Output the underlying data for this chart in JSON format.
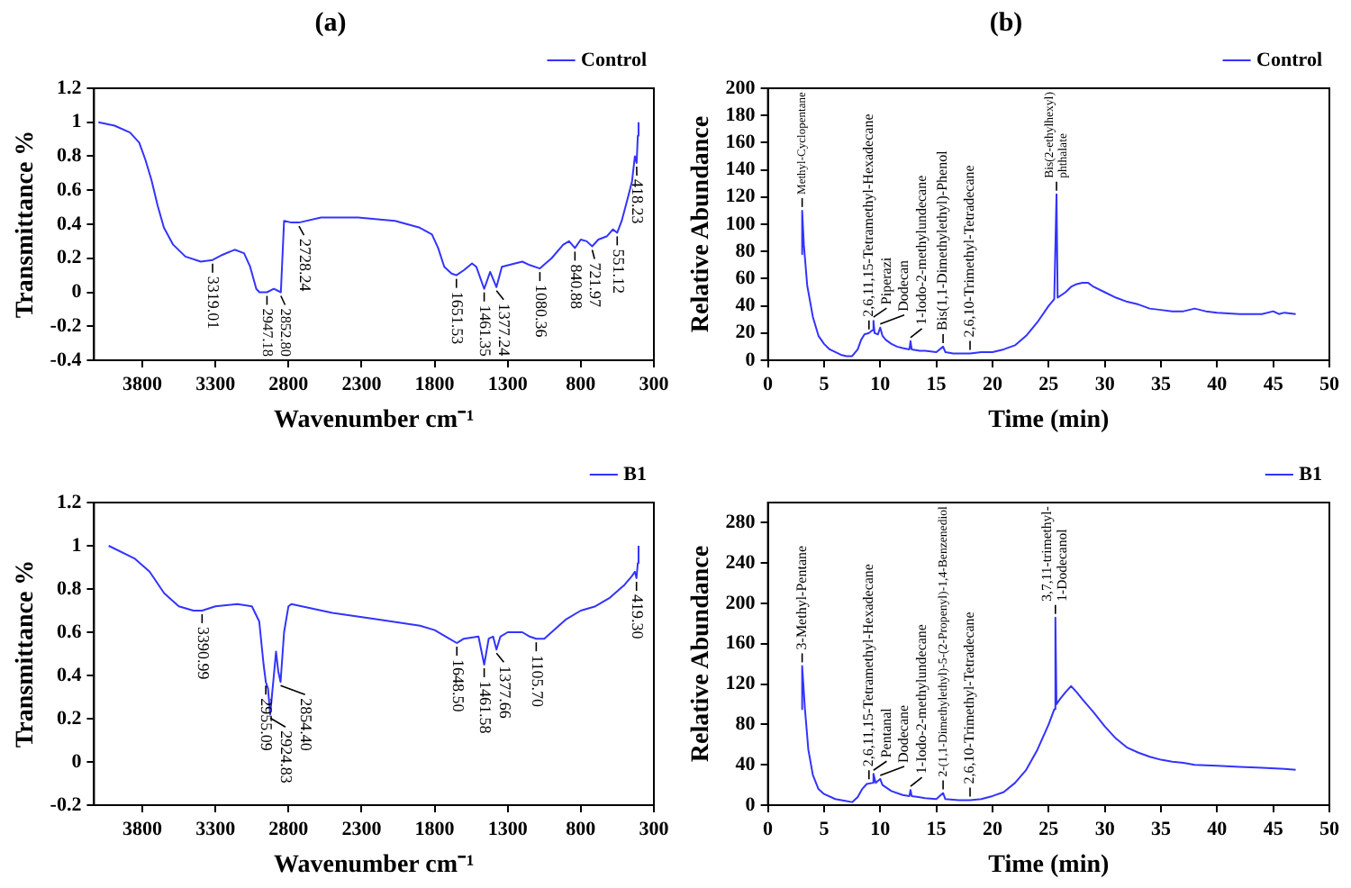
{
  "chart_data": [
    {
      "type": "line",
      "title": "(a)",
      "xlabel": "Wavenumber cm⁻¹",
      "ylabel": "Transmittance %",
      "xlim": [
        4130,
        300
      ],
      "xticks": [
        3800,
        3300,
        2800,
        2300,
        1800,
        1300,
        800,
        300
      ],
      "ylim": [
        -0.4,
        1.2
      ],
      "yticks": [
        -0.4,
        -0.2,
        0,
        0.2,
        0.4,
        0.6,
        0.8,
        1,
        1.2
      ],
      "grid": false,
      "legend": "top right",
      "marker": "none",
      "line_style": "solid",
      "x": [
        4100,
        3990,
        3884,
        3821,
        3779,
        3737,
        3695,
        3652,
        3589,
        3505,
        3400,
        3319,
        3252,
        3168,
        3104,
        3062,
        3020,
        2999,
        2947,
        2900,
        2852,
        2830,
        2780,
        2728,
        2577,
        2324,
        2071,
        1902,
        1818,
        1776,
        1734,
        1684,
        1651,
        1600,
        1544,
        1515,
        1461,
        1420,
        1377,
        1340,
        1250,
        1200,
        1150,
        1080,
        1000,
        920,
        880,
        840,
        800,
        760,
        722,
        680,
        620,
        580,
        551,
        520,
        480,
        450,
        430,
        418,
        410,
        405
      ],
      "series": [
        {
          "name": "Control",
          "color": "#3333ff",
          "values": [
            1.0,
            0.98,
            0.94,
            0.88,
            0.78,
            0.66,
            0.51,
            0.38,
            0.28,
            0.21,
            0.18,
            0.19,
            0.22,
            0.25,
            0.23,
            0.15,
            0.02,
            0.0,
            0.0,
            0.02,
            0.0,
            0.42,
            0.41,
            0.41,
            0.44,
            0.44,
            0.42,
            0.38,
            0.34,
            0.26,
            0.15,
            0.11,
            0.1,
            0.13,
            0.17,
            0.15,
            0.02,
            0.12,
            0.03,
            0.15,
            0.17,
            0.18,
            0.16,
            0.14,
            0.2,
            0.28,
            0.3,
            0.26,
            0.31,
            0.3,
            0.27,
            0.31,
            0.33,
            0.37,
            0.35,
            0.42,
            0.55,
            0.65,
            0.8,
            0.76,
            0.92,
            1.0
          ]
        }
      ],
      "annotations": [
        {
          "text": "3319.01",
          "x": 3319,
          "y": 0.19
        },
        {
          "text": "2947.18",
          "x": 2947,
          "y": 0.0
        },
        {
          "text": "2852.80",
          "x": 2852,
          "y": 0.0
        },
        {
          "text": "2728.24",
          "x": 2728,
          "y": 0.41
        },
        {
          "text": "1651.53",
          "x": 1651,
          "y": 0.1
        },
        {
          "text": "1461.35",
          "x": 1461,
          "y": 0.02
        },
        {
          "text": "1377.24",
          "x": 1377,
          "y": 0.03
        },
        {
          "text": "1080.36",
          "x": 1080,
          "y": 0.14
        },
        {
          "text": "840.88",
          "x": 840,
          "y": 0.26
        },
        {
          "text": "721.97",
          "x": 722,
          "y": 0.27
        },
        {
          "text": "551.12",
          "x": 551,
          "y": 0.35
        },
        {
          "text": "418.23",
          "x": 418,
          "y": 0.76
        }
      ]
    },
    {
      "type": "line",
      "title": "(b)",
      "xlabel": "Time (min)",
      "ylabel": "Relative Abundance",
      "xlim": [
        0,
        50
      ],
      "xticks": [
        0,
        5,
        10,
        15,
        20,
        25,
        30,
        35,
        40,
        45,
        50
      ],
      "ylim": [
        0,
        200
      ],
      "yticks": [
        0,
        20,
        40,
        60,
        80,
        100,
        120,
        140,
        160,
        180,
        200
      ],
      "grid": false,
      "legend": "top right",
      "marker": "none",
      "line_style": "solid",
      "x": [
        3.0,
        3.05,
        3.2,
        3.5,
        4.0,
        4.5,
        5.0,
        5.5,
        6.0,
        6.5,
        7.0,
        7.5,
        8.0,
        8.3,
        8.6,
        9.0,
        9.3,
        9.4,
        9.5,
        9.8,
        10.0,
        10.2,
        10.5,
        11,
        11.5,
        12,
        12.6,
        12.7,
        12.8,
        13.5,
        14,
        15,
        15.6,
        15.8,
        16.5,
        17,
        18,
        19,
        20,
        21,
        22,
        23,
        24,
        25,
        25.5,
        25.7,
        25.8,
        26.5,
        27,
        27.5,
        28,
        28.5,
        29,
        30,
        31,
        32,
        33,
        34,
        35,
        36,
        37,
        38,
        39,
        40,
        42,
        44,
        45,
        45.5,
        46,
        47
      ],
      "series": [
        {
          "name": "Control",
          "color": "#3333ff",
          "values": [
            78,
            110,
            85,
            55,
            32,
            18,
            12,
            8,
            6,
            4,
            3,
            3,
            8,
            15,
            19,
            20,
            22,
            29,
            20,
            19,
            24,
            18,
            15,
            12,
            10,
            9,
            8,
            14,
            8,
            7,
            7,
            6,
            10,
            6,
            5,
            5,
            5,
            6,
            6,
            8,
            11,
            18,
            28,
            40,
            45,
            122,
            46,
            50,
            54,
            56,
            57,
            57,
            54,
            50,
            46,
            43,
            41,
            38,
            37,
            36,
            36,
            38,
            36,
            35,
            34,
            34,
            36,
            34,
            35,
            34
          ]
        }
      ],
      "annotations": [
        {
          "text": "Methyl-Cyclopentane",
          "x": 3.05,
          "y": 110
        },
        {
          "text": "2,6,11,15-Tetramethyl-Hexadecane",
          "x": 9.0,
          "y": 20
        },
        {
          "text": "Piperazi",
          "x": 9.4,
          "y": 29
        },
        {
          "text": "Dodecan",
          "x": 10.0,
          "y": 24
        },
        {
          "text": "1-Iodo-2-methylundecane",
          "x": 12.7,
          "y": 14
        },
        {
          "text": "Bis(1,1-Dimethylethyl)-Phenol",
          "x": 15.6,
          "y": 10
        },
        {
          "text": "2,6,10-Trimethyl-Tetradecane",
          "x": 18,
          "y": 5
        },
        {
          "text": "Bis(2-ethylhexyl) phthalate",
          "x": 25.7,
          "y": 122
        }
      ]
    },
    {
      "type": "line",
      "xlabel": "Wavenumber cm⁻¹",
      "ylabel": "Transmittance %",
      "xlim": [
        4130,
        300
      ],
      "xticks": [
        3800,
        3300,
        2800,
        2300,
        1800,
        1300,
        800,
        300
      ],
      "ylim": [
        -0.2,
        1.2
      ],
      "yticks": [
        -0.2,
        0,
        0.2,
        0.4,
        0.6,
        0.8,
        1,
        1.2
      ],
      "grid": false,
      "legend": "top right",
      "marker": "none",
      "line_style": "solid",
      "x": [
        4030,
        3850,
        3750,
        3650,
        3550,
        3450,
        3391,
        3300,
        3150,
        3050,
        3000,
        2970,
        2955,
        2940,
        2925,
        2900,
        2885,
        2870,
        2854,
        2830,
        2800,
        2780,
        2500,
        2200,
        1900,
        1800,
        1700,
        1648,
        1600,
        1500,
        1461,
        1430,
        1400,
        1377,
        1350,
        1300,
        1200,
        1150,
        1105,
        1050,
        1000,
        900,
        800,
        700,
        600,
        500,
        450,
        430,
        419,
        410,
        405
      ],
      "series": [
        {
          "name": "B1",
          "color": "#3333ff",
          "values": [
            1.0,
            0.94,
            0.88,
            0.78,
            0.72,
            0.7,
            0.7,
            0.72,
            0.73,
            0.72,
            0.65,
            0.45,
            0.37,
            0.34,
            0.22,
            0.4,
            0.51,
            0.42,
            0.37,
            0.6,
            0.72,
            0.73,
            0.69,
            0.66,
            0.63,
            0.61,
            0.57,
            0.55,
            0.57,
            0.58,
            0.45,
            0.57,
            0.58,
            0.52,
            0.58,
            0.6,
            0.6,
            0.58,
            0.57,
            0.57,
            0.6,
            0.66,
            0.7,
            0.72,
            0.76,
            0.82,
            0.86,
            0.88,
            0.85,
            0.92,
            1.0
          ]
        }
      ],
      "annotations": [
        {
          "text": "3390.99",
          "x": 3391,
          "y": 0.7
        },
        {
          "text": "2955.09",
          "x": 2955,
          "y": 0.37
        },
        {
          "text": "2924.83",
          "x": 2925,
          "y": 0.22
        },
        {
          "text": "2854.40",
          "x": 2854,
          "y": 0.37
        },
        {
          "text": "1648.50",
          "x": 1648,
          "y": 0.55
        },
        {
          "text": "1461.58",
          "x": 1461,
          "y": 0.45
        },
        {
          "text": "1377.66",
          "x": 1377,
          "y": 0.52
        },
        {
          "text": "1105.70",
          "x": 1105,
          "y": 0.57
        },
        {
          "text": "419.30",
          "x": 419,
          "y": 0.85
        }
      ]
    },
    {
      "type": "line",
      "xlabel": "Time (min)",
      "ylabel": "Relative Abundance",
      "xlim": [
        0,
        50
      ],
      "xticks": [
        0,
        5,
        10,
        15,
        20,
        25,
        30,
        35,
        40,
        45,
        50
      ],
      "ylim": [
        0,
        300
      ],
      "yticks": [
        0,
        40,
        80,
        120,
        160,
        200,
        240,
        280
      ],
      "grid": false,
      "legend": "top right",
      "marker": "none",
      "line_style": "solid",
      "x": [
        3.0,
        3.05,
        3.3,
        3.6,
        4.0,
        4.5,
        5,
        6,
        7,
        7.5,
        8,
        8.4,
        8.8,
        9.3,
        9.4,
        9.6,
        10,
        10.2,
        11,
        12,
        12.6,
        12.7,
        12.8,
        13.4,
        14,
        15,
        15.6,
        15.8,
        17,
        18,
        19,
        20,
        21,
        22,
        23,
        24,
        25,
        25.5,
        25.6,
        25.7,
        26,
        26.5,
        27,
        27.5,
        28,
        29,
        30,
        31,
        32,
        33,
        34,
        35,
        36,
        37,
        38,
        40,
        42,
        44,
        46,
        47
      ],
      "series": [
        {
          "name": "B1",
          "color": "#3333ff",
          "values": [
            95,
            138,
            95,
            55,
            30,
            16,
            11,
            6,
            4,
            3,
            8,
            16,
            21,
            22,
            31,
            22,
            26,
            20,
            14,
            10,
            9,
            15,
            9,
            8,
            7,
            6,
            12,
            6,
            5,
            5,
            6,
            9,
            13,
            22,
            35,
            55,
            80,
            95,
            186,
            100,
            105,
            112,
            118,
            112,
            105,
            92,
            78,
            66,
            57,
            52,
            48,
            45,
            43,
            42,
            40,
            39,
            38,
            37,
            36,
            35
          ]
        }
      ],
      "annotations": [
        {
          "text": "3-Methyl-Pentane",
          "x": 3.05,
          "y": 138
        },
        {
          "text": "2,6,11,15-Tetramethyl-Hexadecane",
          "x": 9.0,
          "y": 22
        },
        {
          "text": "Pentanal",
          "x": 9.4,
          "y": 31
        },
        {
          "text": "Dodecane",
          "x": 10.0,
          "y": 26
        },
        {
          "text": "1-Iodo-2-methylundecane",
          "x": 12.7,
          "y": 15
        },
        {
          "text": "2-(1,1-Dimethylethyl)-5-(2-Propenyl)-1,4-Benzenediol",
          "x": 15.6,
          "y": 12
        },
        {
          "text": "2,6,10-Trimethyl-Tetradecane",
          "x": 18,
          "y": 5
        },
        {
          "text": "3,7,11-trimethyl-1-Dodecanol",
          "x": 25.6,
          "y": 186
        }
      ]
    }
  ]
}
